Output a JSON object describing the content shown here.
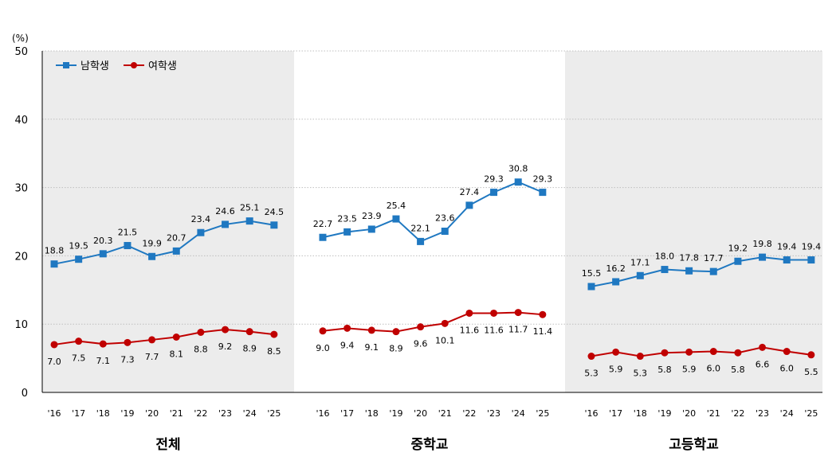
{
  "chart_data": {
    "type": "line",
    "y_unit": "(%)",
    "ylim": [
      0,
      50
    ],
    "yticks": [
      0,
      10,
      20,
      30,
      40,
      50
    ],
    "grid": true,
    "legend_position": "top-left",
    "series_names": [
      "남학생",
      "여학생"
    ],
    "colors": {
      "male": "#1f78c1",
      "female": "#c00000",
      "panel_shade": "#ececec",
      "grid": "#bfbfbf"
    },
    "panels": [
      {
        "label": "전체",
        "x": [
          "'16",
          "'17",
          "'18",
          "'19",
          "'20",
          "'21",
          "'22",
          "'23",
          "'24",
          "'25"
        ],
        "series": [
          {
            "name": "남학생",
            "values": [
              18.8,
              19.5,
              20.3,
              21.5,
              19.9,
              20.7,
              23.4,
              24.6,
              25.1,
              24.5
            ]
          },
          {
            "name": "여학생",
            "values": [
              7.0,
              7.5,
              7.1,
              7.3,
              7.7,
              8.1,
              8.8,
              9.2,
              8.9,
              8.5
            ]
          }
        ]
      },
      {
        "label": "중학교",
        "x": [
          "'16",
          "'17",
          "'18",
          "'19",
          "'20",
          "'21",
          "'22",
          "'23",
          "'24",
          "'25"
        ],
        "series": [
          {
            "name": "남학생",
            "values": [
              22.7,
              23.5,
              23.9,
              25.4,
              22.1,
              23.6,
              27.4,
              29.3,
              30.8,
              29.3
            ]
          },
          {
            "name": "여학생",
            "values": [
              9.0,
              9.4,
              9.1,
              8.9,
              9.6,
              10.1,
              11.6,
              11.6,
              11.7,
              11.4
            ]
          }
        ]
      },
      {
        "label": "고등학교",
        "x": [
          "'16",
          "'17",
          "'18",
          "'19",
          "'20",
          "'21",
          "'22",
          "'23",
          "'24",
          "'25"
        ],
        "series": [
          {
            "name": "남학생",
            "values": [
              15.5,
              16.2,
              17.1,
              18.0,
              17.8,
              17.7,
              19.2,
              19.8,
              19.4,
              19.4
            ]
          },
          {
            "name": "여학생",
            "values": [
              5.3,
              5.9,
              5.3,
              5.8,
              5.9,
              6.0,
              5.8,
              6.6,
              6.0,
              5.5
            ]
          }
        ]
      }
    ]
  }
}
